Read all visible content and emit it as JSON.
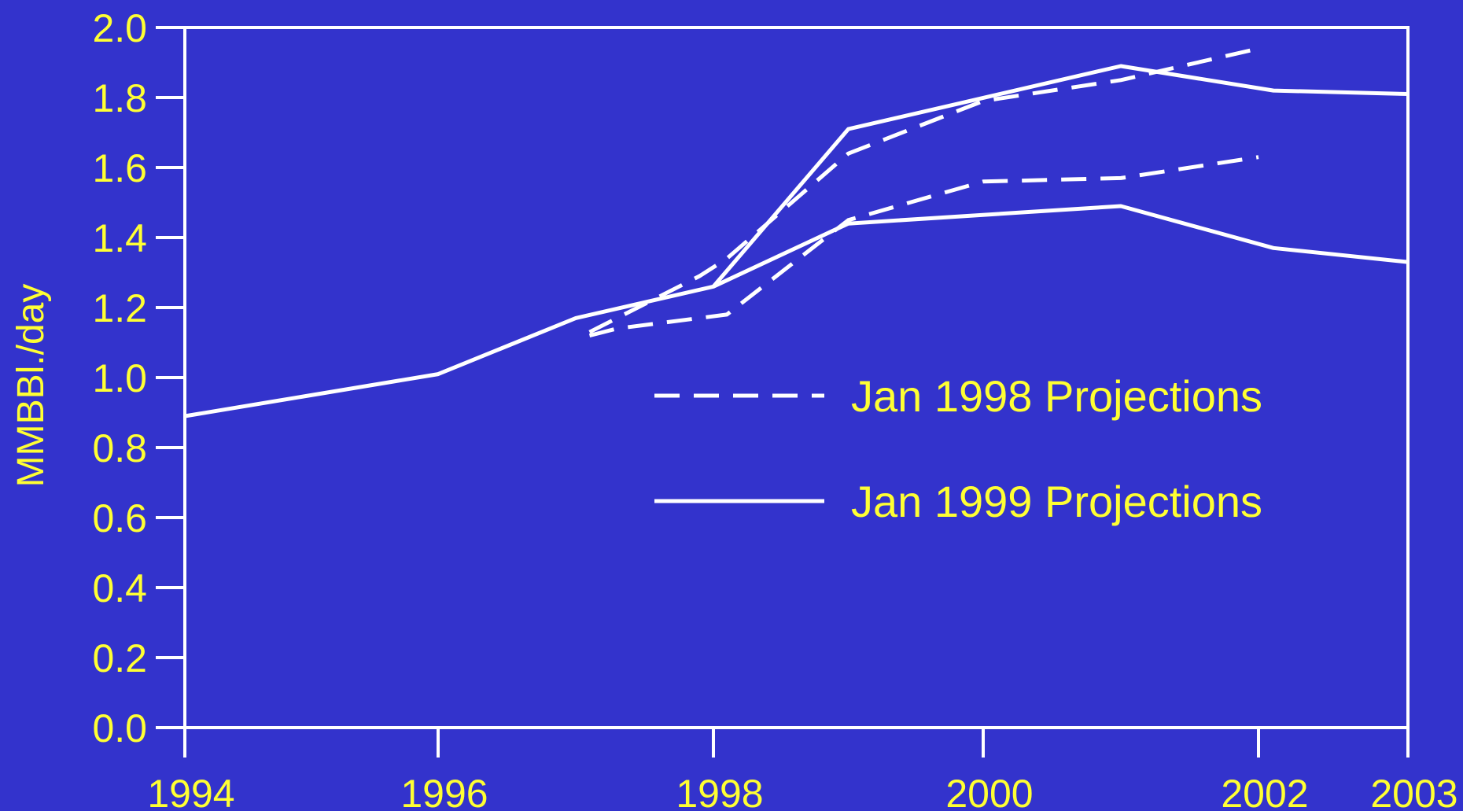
{
  "chart_data": {
    "type": "line",
    "title": "",
    "xlabel": "",
    "ylabel": "MMBBl./day",
    "xlim": [
      1994,
      2003
    ],
    "ylim": [
      0.0,
      2.0
    ],
    "x_ticks": [
      1994,
      1996,
      1998,
      2000,
      2002,
      2003
    ],
    "x_tick_labels": [
      "1994",
      "1996",
      "1998",
      "2000",
      "2002",
      "2003"
    ],
    "y_ticks": [
      0.0,
      0.2,
      0.4,
      0.6,
      0.8,
      1.0,
      1.2,
      1.4,
      1.6,
      1.8,
      2.0
    ],
    "y_tick_labels": [
      "0.0",
      "0.2",
      "0.4",
      "0.6",
      "0.8",
      "1.0",
      "1.2",
      "1.4",
      "1.6",
      "1.8",
      "2.0"
    ],
    "grid": false,
    "legend_position": "center-right",
    "colors": {
      "background": "#3333cc",
      "text": "#ffff33",
      "lines": "#ffffff"
    },
    "series": [
      {
        "name": "Jan 1998 Projections",
        "style": "dashed",
        "x": [
          1997.1,
          1997.9,
          1998.1,
          1999.0,
          2000.0,
          2001.0,
          2002.0
        ],
        "y": [
          1.13,
          1.29,
          1.34,
          1.64,
          1.79,
          1.85,
          1.94
        ]
      },
      {
        "name": "",
        "style": "dashed",
        "x": [
          1997.1,
          1997.3,
          1998.1,
          1999.0,
          2000.0,
          2001.0,
          2002.0
        ],
        "y": [
          1.12,
          1.14,
          1.18,
          1.45,
          1.56,
          1.57,
          1.63
        ]
      },
      {
        "name": "Jan 1999 Projections",
        "style": "solid",
        "x": [
          1994.0,
          1996.0,
          1997.0,
          1998.0,
          1999.0,
          2001.0,
          2002.1,
          2003.0
        ],
        "y": [
          0.89,
          1.01,
          1.17,
          1.26,
          1.71,
          1.89,
          1.82,
          1.81
        ]
      },
      {
        "name": "",
        "style": "solid",
        "x": [
          1998.0,
          1999.0,
          2001.0,
          2002.1,
          2003.0
        ],
        "y": [
          1.26,
          1.44,
          1.49,
          1.37,
          1.33
        ]
      }
    ]
  }
}
